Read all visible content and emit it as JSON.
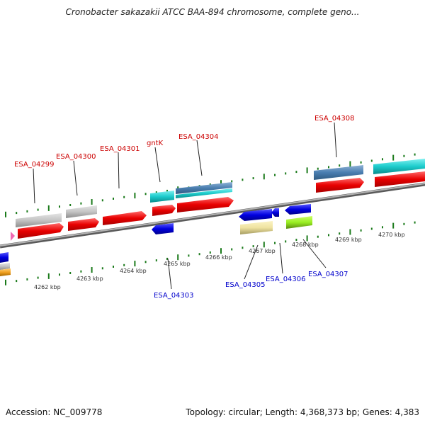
{
  "title": "Cronobacter sakazakii ATCC BAA-894 chromosome, complete geno...",
  "footer": {
    "accession": "Accession: NC_009778",
    "summary": "Topology: circular; Length: 4,368,373 bp; Genes: 4,383"
  },
  "colors": {
    "forward_label": "#cc0000",
    "reverse_label": "#0000cc",
    "tick": "#1a7a1a",
    "backbone": "#8a8a8a"
  },
  "scale_labels": [
    "4262 kbp",
    "4263 kbp",
    "4264 kbp",
    "4265 kbp",
    "4266 kbp",
    "4267 kbp",
    "4268 kbp",
    "4269 kbp",
    "4270 kbp"
  ],
  "forward_gene_labels": [
    "ESA_04299",
    "ESA_04300",
    "ESA_04301",
    "gntK",
    "ESA_04304",
    "ESA_04308"
  ],
  "reverse_gene_labels": [
    "ESA_04303",
    "ESA_04305",
    "ESA_04306",
    "ESA_04307"
  ]
}
